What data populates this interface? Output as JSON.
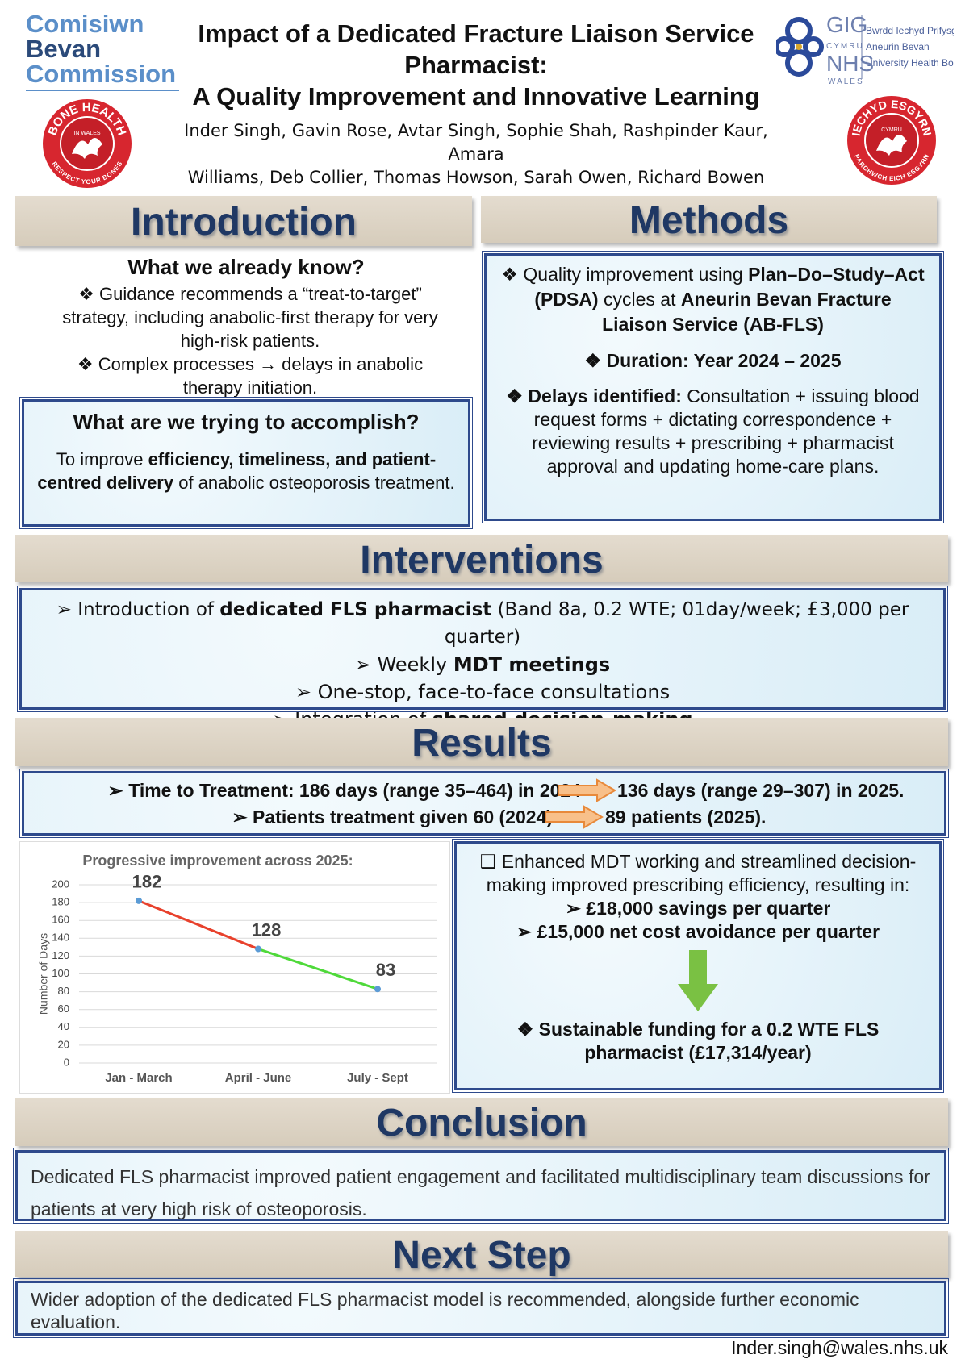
{
  "header": {
    "logo_left": [
      "Comisiwn",
      "Bevan",
      "Commission"
    ],
    "badge_left": {
      "top": "BONE HEALTH",
      "middle": "IN WALES",
      "bottom": "RESPECT YOUR BONES"
    },
    "title": [
      "Impact of a Dedicated Fracture Liaison Service",
      "Pharmacist:",
      "A Quality Improvement and Innovative Learning"
    ],
    "authors": [
      "Inder Singh, Gavin Rose, Avtar Singh, Sophie Shah, Rashpinder Kaur, Amara",
      "Williams, Deb Collier, Thomas Howson, Sarah Owen, Richard Bowen"
    ],
    "logo_right": {
      "gig": "GIG",
      "cymru": "CYMRU",
      "nhs": "NHS",
      "wales": "WALES",
      "board": [
        "Bwrdd Iechyd Prifysgol",
        "Aneurin Bevan",
        "University Health Board"
      ]
    },
    "badge_right": {
      "top": "IECHYD ESGYRN",
      "middle": "CYMRU",
      "bottom": "PARCHWCH EICH ESGYRN"
    }
  },
  "introduction": {
    "heading": "Introduction",
    "subheading": "What we already know?",
    "bullets": [
      "❖ Guidance recommends a “treat-to-target” strategy, including anabolic-first therapy for very high-risk patients.",
      "❖  Complex processes → delays in anabolic therapy initiation."
    ],
    "box": {
      "heading": "What are we trying to accomplish?",
      "text": [
        "To improve ",
        {
          "text": "efficiency, timeliness, and patient-centred delivery",
          "bold": true
        },
        " of anabolic osteoporosis treatment."
      ]
    }
  },
  "methods": {
    "heading": "Methods",
    "items": [
      [
        "❖  Quality improvement using ",
        {
          "text": "Plan–Do–Study–Act (PDSA)",
          "bold": true
        },
        " cycles at ",
        {
          "text": "Aneurin Bevan Fracture Liaison Service (AB-FLS)",
          "bold": true
        }
      ],
      [
        {
          "text": "❖ Duration: Year 2024 – 2025",
          "bold": true
        }
      ],
      [
        {
          "text": "❖ Delays identified:",
          "bold": true
        },
        " Consultation + issuing blood request forms + dictating correspondence + reviewing results + prescribing + pharmacist approval and updating home-care plans."
      ]
    ]
  },
  "interventions": {
    "heading": "Interventions",
    "items": [
      [
        "➢ Introduction of ",
        {
          "text": "dedicated FLS pharmacist",
          "bold": true
        },
        " (Band 8a, 0.2 WTE; 01day/week; £3,000 per quarter)"
      ],
      [
        "➢ Weekly ",
        {
          "text": "MDT meetings",
          "bold": true
        }
      ],
      [
        "➢ One-stop, face-to-face consultations"
      ],
      [
        "➢ Integration of ",
        {
          "text": "shared decision-making",
          "bold": true
        }
      ]
    ]
  },
  "results": {
    "heading": "Results",
    "summary": [
      [
        "➢ Time to Treatment: 186 days (range 35–464) in 2024",
        "136 days (range 29–307) in 2025."
      ],
      [
        "➢  Patients treatment given 60 (2024)",
        "89 patients (2025)."
      ]
    ],
    "outcomes": [
      "❑ Enhanced MDT working and streamlined decision-making improved prescribing efficiency, resulting in:",
      [
        {
          "text": "➢ £18,000 savings per quarter",
          "bold": true
        }
      ],
      [
        {
          "text": "➢ £15,000 net cost avoidance per quarter",
          "bold": true
        }
      ],
      [
        {
          "text": "❖ Sustainable funding for a 0.2 WTE FLS pharmacist (£17,314/year)",
          "bold": true
        }
      ]
    ]
  },
  "chart_data": {
    "type": "line",
    "title": "Progressive improvement across 2025:",
    "y_label": "Number of Days",
    "categories": [
      "Jan - March",
      "April - June",
      "July - Sept"
    ],
    "values": [
      182,
      128,
      83
    ],
    "segment_colors": [
      "#e8412c",
      "#4fd93a"
    ],
    "point_color": "#5b9bd5",
    "ylim": [
      0,
      200
    ],
    "yticks": [
      0,
      20,
      40,
      60,
      80,
      100,
      120,
      140,
      160,
      180,
      200
    ],
    "grid": true
  },
  "conclusion": {
    "heading": "Conclusion",
    "text": "Dedicated FLS pharmacist improved patient engagement and facilitated multidisciplinary team discussions for patients at very high risk of osteoporosis."
  },
  "next_step": {
    "heading": "Next Step",
    "text": "Wider adoption of the dedicated FLS pharmacist model is recommended, alongside further economic evaluation."
  },
  "footer": {
    "email": "Inder.singh@wales.nhs.uk"
  }
}
